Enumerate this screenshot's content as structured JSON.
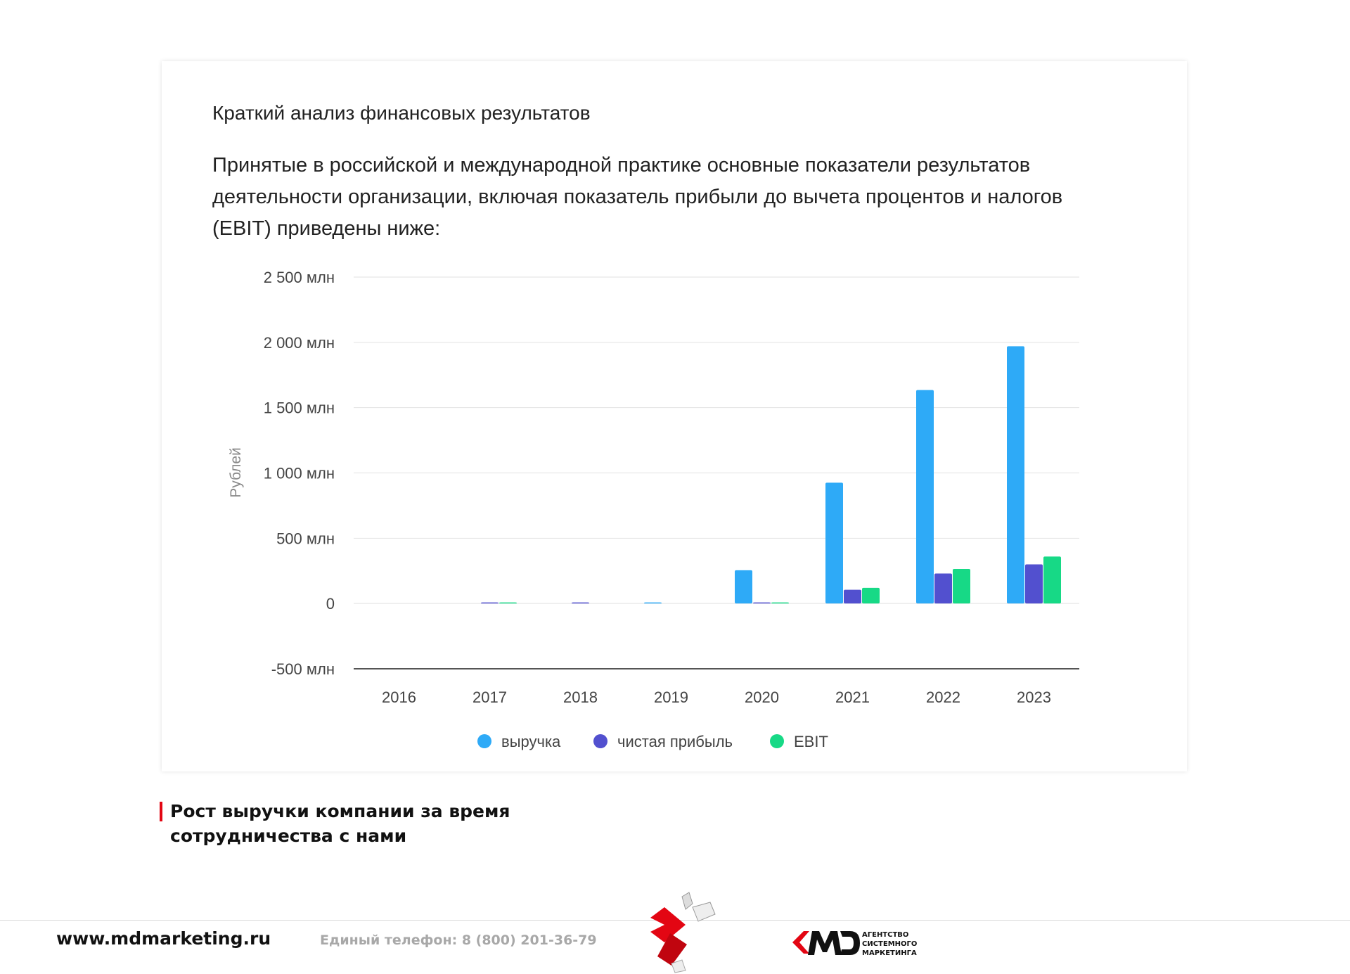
{
  "card": {
    "title": "Краткий анализ финансовых результатов",
    "description": "Принятые в российской и международной практике основные показатели результатов деятельности организации, включая показатель прибыли до вычета процентов и налогов (EBIT) приведены ниже:"
  },
  "chart_data": {
    "type": "bar",
    "title": "",
    "xlabel": "",
    "ylabel": "Рублей",
    "categories": [
      "2016",
      "2017",
      "2018",
      "2019",
      "2020",
      "2021",
      "2022",
      "2023"
    ],
    "y_ticks": [
      -500,
      0,
      500,
      1000,
      1500,
      2000,
      2500
    ],
    "y_tick_labels": [
      "-500 млн",
      "0",
      "500 млн",
      "1 000 млн",
      "1 500 млн",
      "2 000 млн",
      "2 500 млн"
    ],
    "ylim": [
      -500,
      2500
    ],
    "grid": true,
    "legend": "bottom",
    "series": [
      {
        "name": "выручка",
        "color": "#2eaaf7",
        "values": [
          0,
          0,
          0,
          5,
          255,
          925,
          1635,
          1970
        ]
      },
      {
        "name": "чистая прибыль",
        "color": "#5250cf",
        "values": [
          0,
          5,
          5,
          0,
          5,
          105,
          230,
          300
        ]
      },
      {
        "name": "EBIT",
        "color": "#17d986",
        "values": [
          0,
          5,
          0,
          0,
          5,
          120,
          265,
          360
        ]
      }
    ]
  },
  "caption": {
    "line1": "Рост выручки компании за время",
    "line2": "сотрудничества с нами",
    "accent_color": "#e30613"
  },
  "footer": {
    "site": "www.mdmarketing.ru",
    "phone": "Единый телефон: 8 (800) 201-36-79",
    "logo_lines": [
      "АГЕНТСТВО",
      "СИСТЕМНОГО",
      "МАРКЕТИНГА"
    ]
  }
}
